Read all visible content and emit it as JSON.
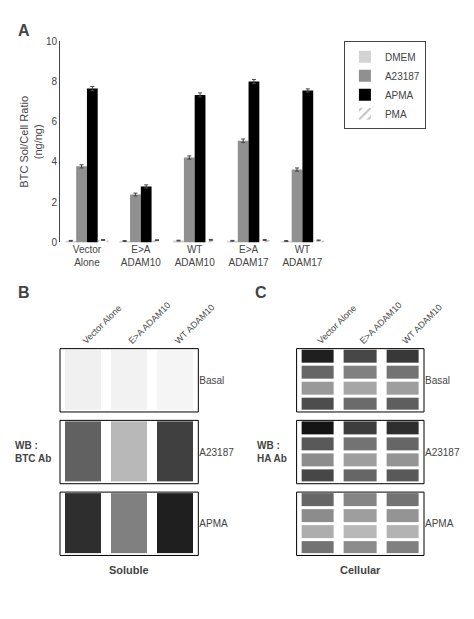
{
  "chart_data": [
    {
      "type": "bar",
      "title": "A",
      "categories": [
        "Vector\nAlone",
        "E>A\nADAM10",
        "WT\nADAM10",
        "E>A\nADAM17",
        "WT\nADAM17"
      ],
      "series": [
        {
          "name": "DMEM",
          "color": "#d3d3d3",
          "values": [
            0.08,
            0.07,
            0.09,
            0.08,
            0.07
          ],
          "errors": [
            0.02,
            0.02,
            0.02,
            0.02,
            0.02
          ]
        },
        {
          "name": "A23187",
          "color": "#909090",
          "values": [
            3.78,
            2.38,
            4.22,
            5.05,
            3.62
          ],
          "errors": [
            0.08,
            0.07,
            0.08,
            0.09,
            0.08
          ]
        },
        {
          "name": "APMA",
          "color": "#000000",
          "values": [
            7.65,
            2.78,
            7.33,
            8.0,
            7.55
          ],
          "errors": [
            0.1,
            0.08,
            0.1,
            0.1,
            0.08
          ]
        },
        {
          "name": "PMA",
          "color": "#c0c0c0",
          "marker": "/",
          "values": [
            0.12,
            0.11,
            0.13,
            0.12,
            0.1
          ],
          "errors": [
            0.02,
            0.02,
            0.02,
            0.02,
            0.02
          ]
        }
      ],
      "ylabel": "BTC Sol/Cell Ratio\n(ng/ng)",
      "ylim": [
        0,
        10
      ],
      "yticks": [
        0,
        2,
        4,
        6,
        8,
        10
      ],
      "grid": false,
      "legend": "right"
    },
    {
      "type": "heatmap",
      "title": "B",
      "ylabel": "WB :\nBTC Ab",
      "xlabel": "Soluble",
      "categories": [
        "Vector Alone",
        "E>A ADAM10",
        "WT ADAM10"
      ],
      "zlim": [
        0,
        1
      ],
      "series": [
        {
          "name": "Basal",
          "values": [
            [
              0.06,
              0.05,
              0.04
            ]
          ]
        },
        {
          "name": "A23187",
          "values": [
            [
              0.62,
              0.28,
              0.75
            ]
          ]
        },
        {
          "name": "APMA",
          "values": [
            [
              0.82,
              0.5,
              0.88
            ]
          ]
        }
      ]
    },
    {
      "type": "heatmap",
      "title": "C",
      "ylabel": "WB :\nHA Ab",
      "xlabel": "Cellular",
      "categories": [
        "Vector Alone",
        "E>A ADAM10",
        "WT ADAM10"
      ],
      "zlim": [
        0,
        1
      ],
      "series": [
        {
          "name": "Basal",
          "values": [
            [
              0.88,
              0.72,
              0.78
            ],
            [
              0.6,
              0.5,
              0.55
            ],
            [
              0.4,
              0.35,
              0.38
            ],
            [
              0.7,
              0.58,
              0.63
            ]
          ]
        },
        {
          "name": "A23187",
          "values": [
            [
              0.92,
              0.76,
              0.82
            ],
            [
              0.65,
              0.55,
              0.6
            ],
            [
              0.45,
              0.38,
              0.42
            ],
            [
              0.72,
              0.6,
              0.65
            ]
          ]
        },
        {
          "name": "APMA",
          "values": [
            [
              0.6,
              0.48,
              0.55
            ],
            [
              0.45,
              0.38,
              0.42
            ],
            [
              0.32,
              0.28,
              0.3
            ],
            [
              0.55,
              0.45,
              0.5
            ]
          ]
        }
      ]
    }
  ]
}
